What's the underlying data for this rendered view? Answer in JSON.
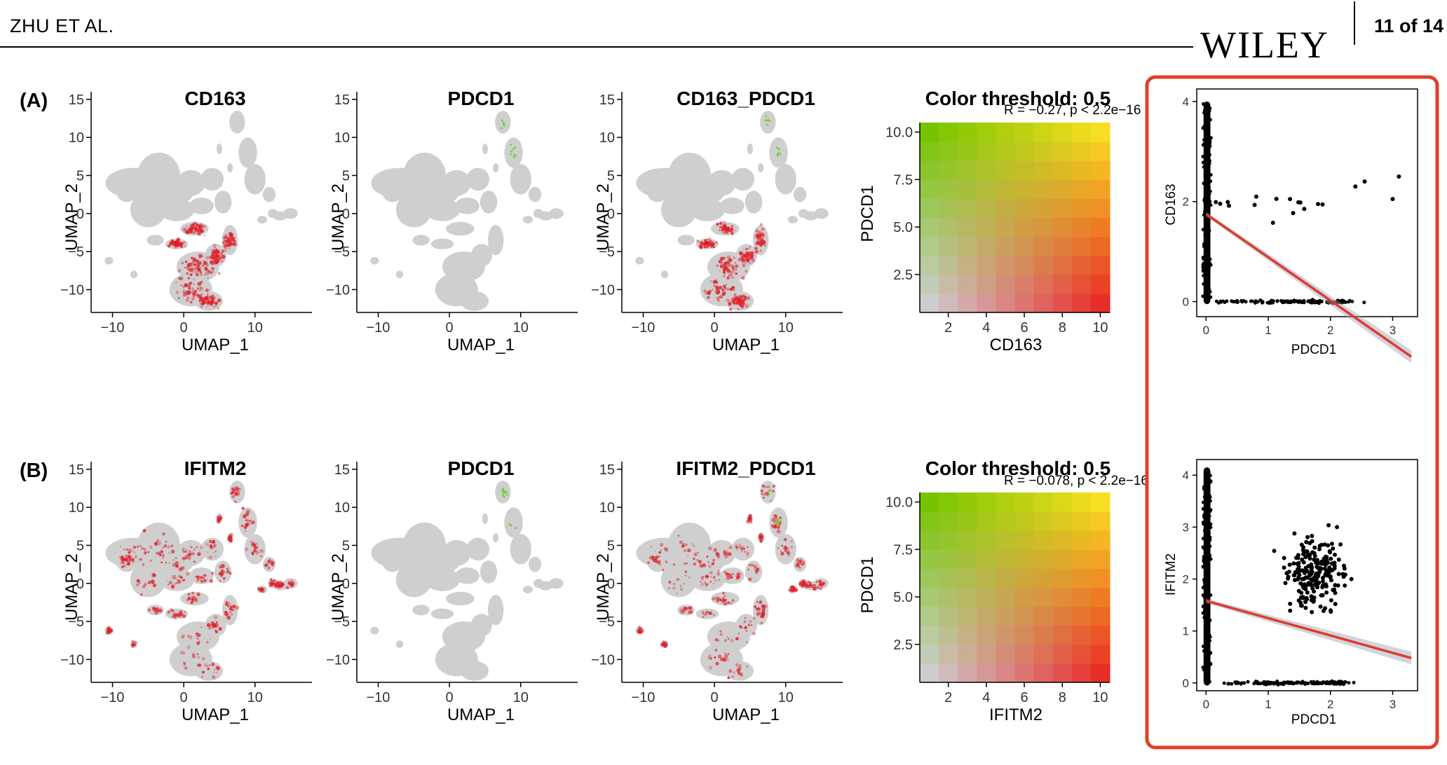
{
  "header": {
    "author": "ZHU ET AL.",
    "publisher": "WILEY",
    "page": "11 of 14"
  },
  "rows": [
    {
      "label": "(A)",
      "umap": [
        {
          "title": "CD163",
          "xlabel": "UMAP_1",
          "ylabel": "UMAP_2"
        },
        {
          "title": "PDCD1",
          "xlabel": "UMAP_1",
          "ylabel": "UMAP_2"
        },
        {
          "title": "CD163_PDCD1",
          "xlabel": "UMAP_1",
          "ylabel": "UMAP_2"
        }
      ],
      "threshold": {
        "title": "Color threshold: 0.5",
        "xlabel": "CD163",
        "ylabel": "PDCD1"
      },
      "correlation": {
        "stat": "R = −0.27, p < 2.2e−16",
        "xlabel": "PDCD1",
        "ylabel": "CD163"
      }
    },
    {
      "label": "(B)",
      "umap": [
        {
          "title": "IFITM2",
          "xlabel": "UMAP_1",
          "ylabel": "UMAP_2"
        },
        {
          "title": "PDCD1",
          "xlabel": "UMAP_1",
          "ylabel": "UMAP_2"
        },
        {
          "title": "IFITM2_PDCD1",
          "xlabel": "UMAP_1",
          "ylabel": "UMAP_2"
        }
      ],
      "threshold": {
        "title": "Color threshold: 0.5",
        "xlabel": "IFITM2",
        "ylabel": "PDCD1"
      },
      "correlation": {
        "stat": "R = −0.078, p < 2.2e−16",
        "xlabel": "PDCD1",
        "ylabel": "IFITM2"
      }
    }
  ],
  "chart_data": [
    {
      "type": "scatter",
      "title": "CD163",
      "xlabel": "UMAP_1",
      "ylabel": "UMAP_2",
      "xlim": [
        -13,
        18
      ],
      "ylim": [
        -13,
        16
      ],
      "x_ticks": [
        -10,
        0,
        10
      ],
      "y_ticks": [
        15,
        10,
        5,
        0,
        -5,
        -10
      ],
      "x_tick_labels": [
        "−10",
        "0",
        "10"
      ],
      "y_tick_labels": [
        "15",
        "10",
        "5",
        "0",
        "−5",
        "−10"
      ]
    },
    {
      "type": "scatter",
      "title": "PDCD1",
      "xlabel": "UMAP_1",
      "ylabel": "UMAP_2",
      "xlim": [
        -13,
        18
      ],
      "ylim": [
        -13,
        16
      ],
      "x_ticks": [
        -10,
        0,
        10
      ],
      "y_ticks": [
        15,
        10,
        5,
        0,
        -5,
        -10
      ],
      "x_tick_labels": [
        "−10",
        "0",
        "10"
      ],
      "y_tick_labels": [
        "15",
        "10",
        "5",
        "0",
        "−5",
        "−10"
      ]
    },
    {
      "type": "scatter",
      "title": "CD163_PDCD1",
      "xlabel": "UMAP_1",
      "ylabel": "UMAP_2",
      "xlim": [
        -13,
        18
      ],
      "ylim": [
        -13,
        16
      ],
      "x_ticks": [
        -10,
        0,
        10
      ],
      "y_ticks": [
        15,
        10,
        5,
        0,
        -5,
        -10
      ],
      "x_tick_labels": [
        "−10",
        "0",
        "10"
      ],
      "y_tick_labels": [
        "15",
        "10",
        "5",
        "0",
        "−5",
        "−10"
      ]
    },
    {
      "type": "heatmap",
      "title": "Color threshold: 0.5",
      "xlabel": "CD163",
      "ylabel": "PDCD1",
      "xlim": [
        0.5,
        10.5
      ],
      "ylim": [
        0.5,
        10.5
      ],
      "x_ticks": [
        2,
        4,
        6,
        8,
        10
      ],
      "y_ticks": [
        10.0,
        7.5,
        5.0,
        2.5
      ],
      "x_tick_labels": [
        "2",
        "4",
        "6",
        "8",
        "10"
      ],
      "y_tick_labels": [
        "10.0",
        "7.5",
        "5.0",
        "2.5"
      ]
    },
    {
      "type": "scatter",
      "title": "",
      "xlabel": "PDCD1",
      "ylabel": "CD163",
      "xlim": [
        -0.15,
        3.4
      ],
      "ylim": [
        -0.3,
        4.25
      ],
      "x_ticks": [
        0,
        1,
        2,
        3
      ],
      "y_ticks": [
        4,
        2,
        0
      ],
      "x_tick_labels": [
        "0",
        "1",
        "2",
        "3"
      ],
      "y_tick_labels": [
        "4",
        "2",
        "0"
      ],
      "annotation": "R = −0.27, p < 2.2e−16",
      "fit_line": {
        "x": [
          0,
          3.3
        ],
        "y": [
          1.75,
          -1.1
        ]
      }
    },
    {
      "type": "scatter",
      "title": "IFITM2",
      "xlabel": "UMAP_1",
      "ylabel": "UMAP_2",
      "xlim": [
        -13,
        18
      ],
      "ylim": [
        -13,
        16
      ],
      "x_ticks": [
        -10,
        0,
        10
      ],
      "y_ticks": [
        15,
        10,
        5,
        0,
        -5,
        -10
      ],
      "x_tick_labels": [
        "−10",
        "0",
        "10"
      ],
      "y_tick_labels": [
        "15",
        "10",
        "5",
        "0",
        "−5",
        "−10"
      ]
    },
    {
      "type": "scatter",
      "title": "PDCD1",
      "xlabel": "UMAP_1",
      "ylabel": "UMAP_2",
      "xlim": [
        -13,
        18
      ],
      "ylim": [
        -13,
        16
      ],
      "x_ticks": [
        -10,
        0,
        10
      ],
      "y_ticks": [
        15,
        10,
        5,
        0,
        -5,
        -10
      ],
      "x_tick_labels": [
        "−10",
        "0",
        "10"
      ],
      "y_tick_labels": [
        "15",
        "10",
        "5",
        "0",
        "−5",
        "−10"
      ]
    },
    {
      "type": "scatter",
      "title": "IFITM2_PDCD1",
      "xlabel": "UMAP_1",
      "ylabel": "UMAP_2",
      "xlim": [
        -13,
        18
      ],
      "ylim": [
        -13,
        16
      ],
      "x_ticks": [
        -10,
        0,
        10
      ],
      "y_ticks": [
        15,
        10,
        5,
        0,
        -5,
        -10
      ],
      "x_tick_labels": [
        "−10",
        "0",
        "10"
      ],
      "y_tick_labels": [
        "15",
        "10",
        "5",
        "0",
        "−5",
        "−10"
      ]
    },
    {
      "type": "heatmap",
      "title": "Color threshold: 0.5",
      "xlabel": "IFITM2",
      "ylabel": "PDCD1",
      "xlim": [
        0.5,
        10.5
      ],
      "ylim": [
        0.5,
        10.5
      ],
      "x_ticks": [
        2,
        4,
        6,
        8,
        10
      ],
      "y_ticks": [
        10.0,
        7.5,
        5.0,
        2.5
      ],
      "x_tick_labels": [
        "2",
        "4",
        "6",
        "8",
        "10"
      ],
      "y_tick_labels": [
        "10.0",
        "7.5",
        "5.0",
        "2.5"
      ]
    },
    {
      "type": "scatter",
      "title": "",
      "xlabel": "PDCD1",
      "ylabel": "IFITM2",
      "xlim": [
        -0.15,
        3.4
      ],
      "ylim": [
        -0.15,
        4.3
      ],
      "x_ticks": [
        0,
        1,
        2,
        3
      ],
      "y_ticks": [
        4,
        3,
        2,
        1,
        0
      ],
      "x_tick_labels": [
        "0",
        "1",
        "2",
        "3"
      ],
      "y_tick_labels": [
        "4",
        "3",
        "2",
        "1",
        "0"
      ],
      "annotation": "R = −0.078, p < 2.2e−16",
      "fit_line": {
        "x": [
          0,
          3.3
        ],
        "y": [
          1.58,
          0.48
        ]
      }
    }
  ],
  "colors": {
    "highlight_box": "#e0402a",
    "umap_base": "#cfcfcf",
    "expr_red": "#e0202a",
    "expr_green": "#6ad22e",
    "fit_line": "#e03a2a",
    "heat_low": "#cdcdcd",
    "heat_green": "#78c200",
    "heat_red": "#e8302a",
    "heat_yellow": "#f8de22"
  }
}
